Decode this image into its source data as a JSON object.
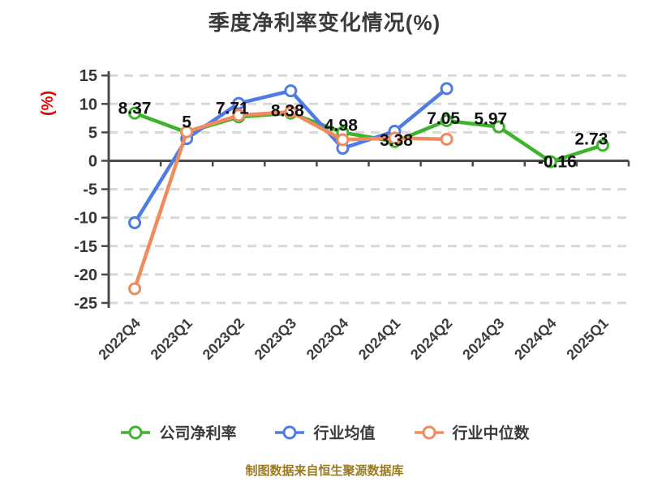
{
  "title": "季度净利率变化情况(%)",
  "y_axis_label": "(%)",
  "footer": "制图数据来自恒生聚源数据库",
  "colors": {
    "company_green": "#3fb32d",
    "industry_avg_blue": "#4e7ce4",
    "industry_median_orange": "#f08b5e",
    "axis": "#4a4a4a",
    "gridline": "#d8d8d8",
    "ylabel_red": "#e60000",
    "footer_text": "#9a7a20",
    "title_text": "#3b3b3b",
    "data_label": "#111111"
  },
  "chart_data": {
    "type": "line",
    "title": "季度净利率变化情况(%)",
    "xlabel": "",
    "ylabel": "(%)",
    "categories": [
      "2022Q4",
      "2023Q1",
      "2023Q2",
      "2023Q3",
      "2023Q4",
      "2024Q1",
      "2024Q2",
      "2024Q3",
      "2024Q4",
      "2025Q1"
    ],
    "series": [
      {
        "name": "公司净利率",
        "key": "company-net-margin",
        "color": "#3fb32d",
        "values": [
          8.37,
          5,
          7.71,
          8.38,
          4.98,
          3.38,
          7.05,
          5.97,
          -0.16,
          2.73
        ],
        "labels": [
          "8.37",
          "5",
          "7.71",
          "8.38",
          "4.98",
          "3.38",
          "7.05",
          "5.97",
          "-0.16",
          "2.73"
        ]
      },
      {
        "name": "行业均值",
        "key": "industry-average",
        "color": "#4e7ce4",
        "values": [
          -10.9,
          3.9,
          10.1,
          12.3,
          2.2,
          5.2,
          12.7,
          null,
          null,
          null
        ],
        "labels": null
      },
      {
        "name": "行业中位数",
        "key": "industry-median",
        "color": "#f08b5e",
        "values": [
          -22.5,
          5.1,
          8.0,
          8.6,
          3.7,
          4.0,
          3.8,
          null,
          null,
          null
        ],
        "labels": null
      }
    ],
    "y_ticks": [
      15,
      10,
      5,
      0,
      -5,
      -10,
      -15,
      -20,
      -25
    ],
    "ylim": [
      -25,
      15
    ],
    "grid": true,
    "grid_style": "dashed",
    "legend_position": "bottom",
    "marker": "circle-white-fill"
  }
}
